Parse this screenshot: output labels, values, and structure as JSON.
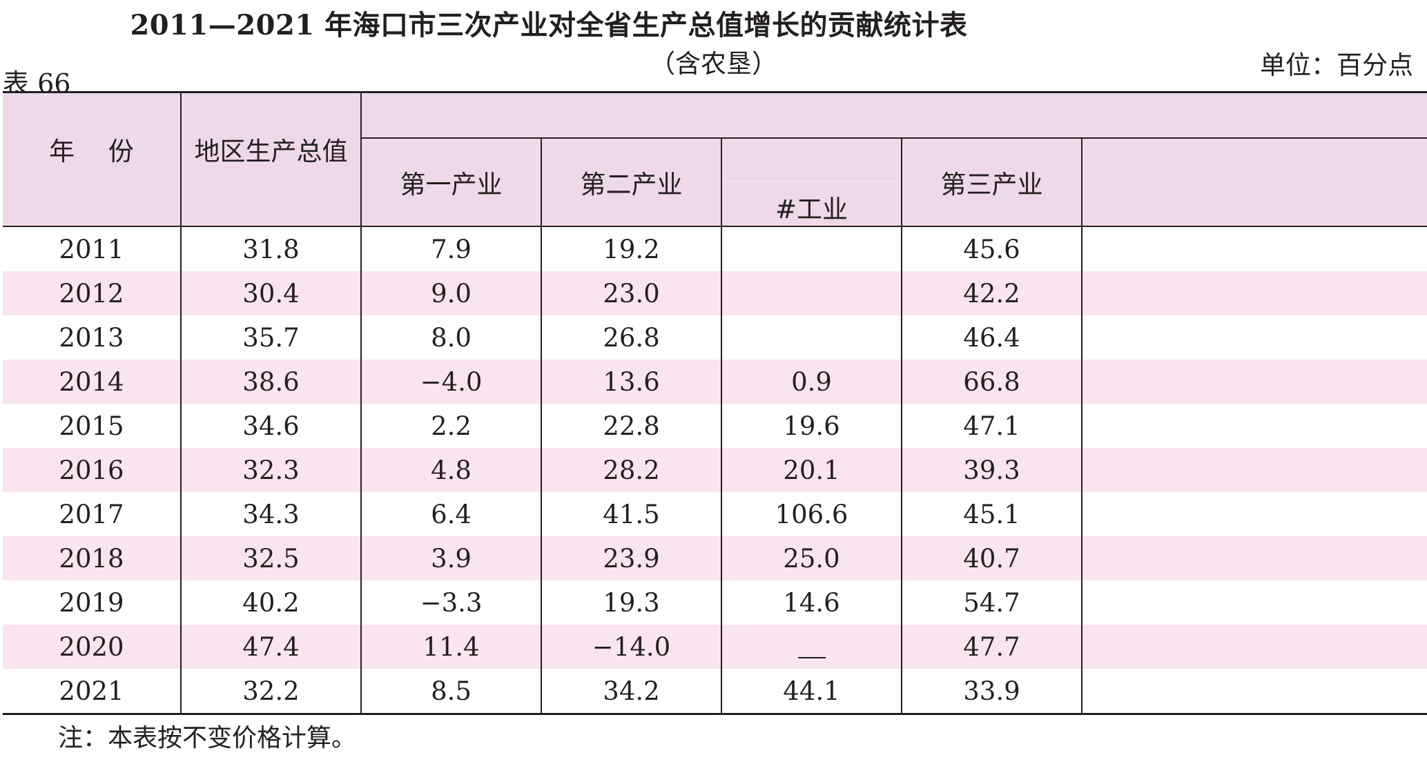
{
  "title": "2011—2021 年海口市三次产业对全省生产总值增长的贡献统计表",
  "subtitle": "（含农垦）",
  "unit": "单位：百分点",
  "table_no": "表 66",
  "headers": {
    "year": "年　 份",
    "gdp": "地区生产总值",
    "primary": "第一产业",
    "secondary": "第二产业",
    "industry": "#工业",
    "tertiary": "第三产业"
  },
  "rows": [
    {
      "year": "2011",
      "gdp": "31.8",
      "primary": "7.9",
      "secondary": "19.2",
      "industry": "",
      "tertiary": "45.6"
    },
    {
      "year": "2012",
      "gdp": "30.4",
      "primary": "9.0",
      "secondary": "23.0",
      "industry": "",
      "tertiary": "42.2"
    },
    {
      "year": "2013",
      "gdp": "35.7",
      "primary": "8.0",
      "secondary": "26.8",
      "industry": "",
      "tertiary": "46.4"
    },
    {
      "year": "2014",
      "gdp": "38.6",
      "primary": "−4.0",
      "secondary": "13.6",
      "industry": "0.9",
      "tertiary": "66.8"
    },
    {
      "year": "2015",
      "gdp": "34.6",
      "primary": "2.2",
      "secondary": "22.8",
      "industry": "19.6",
      "tertiary": "47.1"
    },
    {
      "year": "2016",
      "gdp": "32.3",
      "primary": "4.8",
      "secondary": "28.2",
      "industry": "20.1",
      "tertiary": "39.3"
    },
    {
      "year": "2017",
      "gdp": "34.3",
      "primary": "6.4",
      "secondary": "41.5",
      "industry": "106.6",
      "tertiary": "45.1"
    },
    {
      "year": "2018",
      "gdp": "32.5",
      "primary": "3.9",
      "secondary": "23.9",
      "industry": "25.0",
      "tertiary": "40.7"
    },
    {
      "year": "2019",
      "gdp": "40.2",
      "primary": "−3.3",
      "secondary": "19.3",
      "industry": "14.6",
      "tertiary": "54.7"
    },
    {
      "year": "2020",
      "gdp": "47.4",
      "primary": "11.4",
      "secondary": "−14.0",
      "industry": "__",
      "tertiary": "47.7"
    },
    {
      "year": "2021",
      "gdp": "32.2",
      "primary": "8.5",
      "secondary": "34.2",
      "industry": "44.1",
      "tertiary": "33.9"
    }
  ],
  "note": "注：本表按不变价格计算。"
}
